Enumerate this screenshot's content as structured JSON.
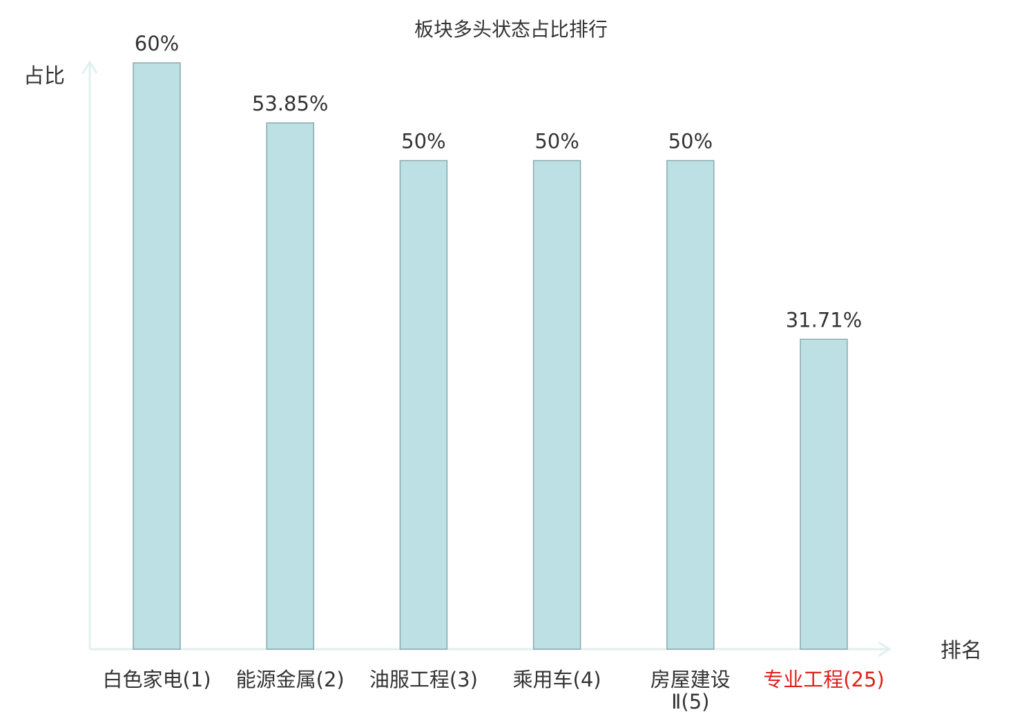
{
  "chart_data": {
    "type": "bar",
    "title": "板块多头状态占比排行",
    "ylabel": "占比",
    "xlabel": "排名",
    "categories": [
      [
        "白色家电(1)"
      ],
      [
        "能源金属(2)"
      ],
      [
        "油服工程(3)"
      ],
      [
        "乘用车(4)"
      ],
      [
        "房屋建设",
        "Ⅱ(5)"
      ],
      [
        "专业工程(25)"
      ]
    ],
    "values": [
      60,
      53.85,
      50,
      50,
      50,
      31.71
    ],
    "value_labels": [
      "60%",
      "53.85%",
      "50%",
      "50%",
      "50%",
      "31.71%"
    ],
    "highlight_index": 5,
    "ylim": [
      0,
      60
    ],
    "grid": false,
    "colors": {
      "bar_fill": "#bce0e3",
      "bar_stroke": "#8aa8ab",
      "axis": "#dff1ef",
      "text": "#333333",
      "highlight_text": "#e0201a"
    }
  }
}
